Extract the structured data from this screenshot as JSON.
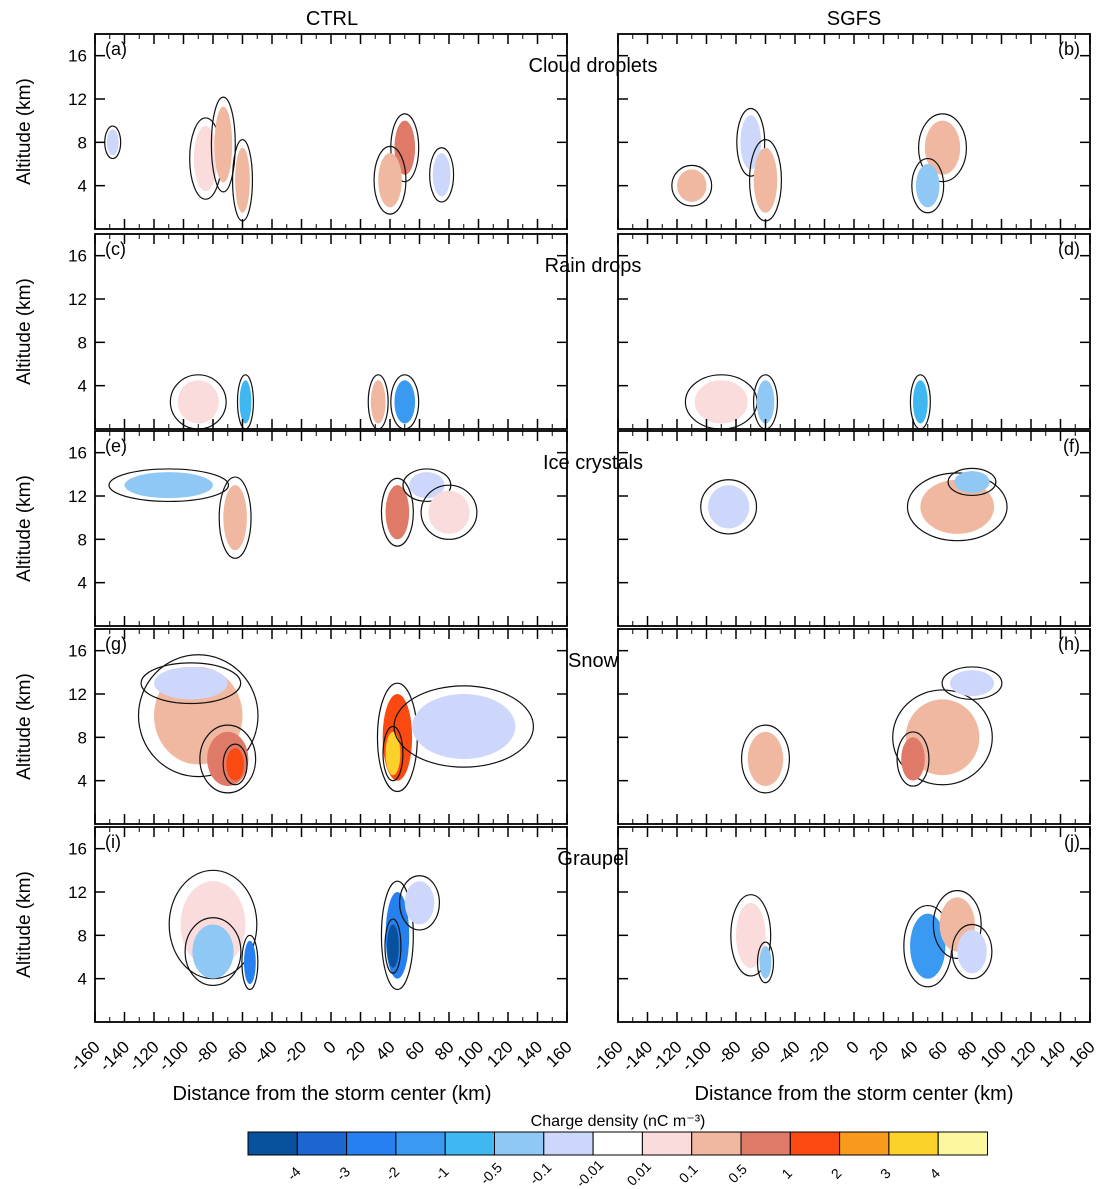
{
  "columns": [
    "CTRL",
    "SGFS"
  ],
  "panel_letters": [
    "(a)",
    "(b)",
    "(c)",
    "(d)",
    "(e)",
    "(f)",
    "(g)",
    "(h)",
    "(i)",
    "(j)"
  ],
  "row_titles": [
    "Cloud droplets",
    "Rain drops",
    "Ice crystals",
    "Snow",
    "Graupel"
  ],
  "ylabel": "Altitude (km)",
  "xlabel": "Distance from the storm center (km)",
  "colorbar": {
    "title": "Charge density (nC m⁻³)",
    "tick_labels": [
      "-4",
      "-3",
      "-2",
      "-1",
      "-0.5",
      "-0.1",
      "-0.01",
      "0.01",
      "0.1",
      "0.5",
      "1",
      "2",
      "3",
      "4"
    ],
    "colors": [
      "#08519c",
      "#1b66d1",
      "#2680f0",
      "#3a9af2",
      "#3fb8f2",
      "#8fc8f5",
      "#cdd7fb",
      "#ffffff",
      "#fadcdc",
      "#f0b8a0",
      "#e07a68",
      "#fa4a12",
      "#f99a1c",
      "#fbd12a",
      "#fcf8a0"
    ]
  },
  "chart_data": {
    "type": "heatmap",
    "x_ticks": [
      -160,
      -140,
      -120,
      -100,
      -80,
      -60,
      -40,
      -20,
      0,
      20,
      40,
      60,
      80,
      100,
      120,
      140,
      160
    ],
    "y_ticks": [
      4,
      8,
      12,
      16
    ],
    "xlim": [
      -160,
      160
    ],
    "ylim": [
      0,
      18
    ],
    "panels": [
      {
        "id": "a",
        "blobs": [
          {
            "x": -148,
            "y": 8,
            "rx": 4,
            "ry": 1.2,
            "v": -0.05
          },
          {
            "x": -85,
            "y": 6.5,
            "rx": 8,
            "ry": 3.0,
            "v": 0.05
          },
          {
            "x": -73,
            "y": 7.8,
            "rx": 6,
            "ry": 3.5,
            "v": 0.3
          },
          {
            "x": -60,
            "y": 4.5,
            "rx": 5,
            "ry": 3.0,
            "v": 0.2
          },
          {
            "x": 50,
            "y": 7.5,
            "rx": 7,
            "ry": 2.5,
            "v": 0.8
          },
          {
            "x": 40,
            "y": 4.5,
            "rx": 8,
            "ry": 2.5,
            "v": 0.3
          },
          {
            "x": 75,
            "y": 5.0,
            "rx": 6,
            "ry": 2.0,
            "v": -0.05
          }
        ]
      },
      {
        "id": "b",
        "blobs": [
          {
            "x": -70,
            "y": 8,
            "rx": 7,
            "ry": 2.5,
            "v": -0.05
          },
          {
            "x": -60,
            "y": 4.5,
            "rx": 8,
            "ry": 3.0,
            "v": 0.2
          },
          {
            "x": -110,
            "y": 4,
            "rx": 10,
            "ry": 1.5,
            "v": 0.1
          },
          {
            "x": 60,
            "y": 7.5,
            "rx": 12,
            "ry": 2.5,
            "v": 0.1
          },
          {
            "x": 50,
            "y": 4,
            "rx": 8,
            "ry": 2.0,
            "v": -0.2
          }
        ]
      },
      {
        "id": "c",
        "blobs": [
          {
            "x": -90,
            "y": 2.5,
            "rx": 14,
            "ry": 2.0,
            "v": 0.05
          },
          {
            "x": -58,
            "y": 2.5,
            "rx": 4,
            "ry": 2.0,
            "v": -0.6
          },
          {
            "x": 50,
            "y": 2.5,
            "rx": 7,
            "ry": 2.0,
            "v": -1.2
          },
          {
            "x": 32,
            "y": 2.5,
            "rx": 5,
            "ry": 2.0,
            "v": 0.1
          }
        ]
      },
      {
        "id": "d",
        "blobs": [
          {
            "x": -90,
            "y": 2.5,
            "rx": 18,
            "ry": 2.0,
            "v": 0.05
          },
          {
            "x": -60,
            "y": 2.5,
            "rx": 6,
            "ry": 2.0,
            "v": -0.3
          },
          {
            "x": 45,
            "y": 2.5,
            "rx": 5,
            "ry": 2.0,
            "v": -0.8
          }
        ]
      },
      {
        "id": "e",
        "blobs": [
          {
            "x": -110,
            "y": 13,
            "rx": 30,
            "ry": 1.2,
            "v": -0.2
          },
          {
            "x": -65,
            "y": 10,
            "rx": 8,
            "ry": 3.0,
            "v": 0.1
          },
          {
            "x": 45,
            "y": 10.5,
            "rx": 8,
            "ry": 2.5,
            "v": 0.9
          },
          {
            "x": 65,
            "y": 13,
            "rx": 12,
            "ry": 1.2,
            "v": -0.1
          },
          {
            "x": 80,
            "y": 10.5,
            "rx": 14,
            "ry": 2.0,
            "v": 0.05
          }
        ]
      },
      {
        "id": "f",
        "blobs": [
          {
            "x": -85,
            "y": 11,
            "rx": 14,
            "ry": 2.0,
            "v": -0.1
          },
          {
            "x": 70,
            "y": 11,
            "rx": 25,
            "ry": 2.5,
            "v": 0.2
          },
          {
            "x": 80,
            "y": 13.3,
            "rx": 12,
            "ry": 1.0,
            "v": -0.2
          }
        ]
      },
      {
        "id": "g",
        "blobs": [
          {
            "x": -90,
            "y": 10,
            "rx": 30,
            "ry": 4.5,
            "v": 0.1
          },
          {
            "x": -95,
            "y": 13,
            "rx": 25,
            "ry": 1.5,
            "v": -0.1
          },
          {
            "x": -70,
            "y": 6,
            "rx": 14,
            "ry": 2.5,
            "v": 0.6
          },
          {
            "x": -65,
            "y": 5.5,
            "rx": 6,
            "ry": 1.5,
            "v": 1.6
          },
          {
            "x": 45,
            "y": 8,
            "rx": 10,
            "ry": 4.0,
            "v": 1.3
          },
          {
            "x": 42,
            "y": 6.5,
            "rx": 5,
            "ry": 2.0,
            "v": 3.5
          },
          {
            "x": 90,
            "y": 9,
            "rx": 35,
            "ry": 3.0,
            "v": -0.05
          }
        ]
      },
      {
        "id": "h",
        "blobs": [
          {
            "x": -60,
            "y": 6,
            "rx": 12,
            "ry": 2.5,
            "v": 0.1
          },
          {
            "x": 60,
            "y": 8,
            "rx": 25,
            "ry": 3.5,
            "v": 0.4
          },
          {
            "x": 40,
            "y": 6,
            "rx": 8,
            "ry": 2.0,
            "v": 0.8
          },
          {
            "x": 80,
            "y": 13,
            "rx": 15,
            "ry": 1.2,
            "v": -0.1
          }
        ]
      },
      {
        "id": "i",
        "blobs": [
          {
            "x": -80,
            "y": 9,
            "rx": 22,
            "ry": 4.0,
            "v": 0.05
          },
          {
            "x": -80,
            "y": 6.5,
            "rx": 14,
            "ry": 2.5,
            "v": -0.3
          },
          {
            "x": -55,
            "y": 5.5,
            "rx": 4,
            "ry": 2.0,
            "v": -2.5
          },
          {
            "x": 45,
            "y": 8,
            "rx": 8,
            "ry": 4.0,
            "v": -2.5
          },
          {
            "x": 42,
            "y": 7,
            "rx": 4,
            "ry": 2.0,
            "v": -4.5
          },
          {
            "x": 60,
            "y": 11,
            "rx": 10,
            "ry": 2.0,
            "v": -0.05
          }
        ]
      },
      {
        "id": "j",
        "blobs": [
          {
            "x": -70,
            "y": 8,
            "rx": 10,
            "ry": 3.0,
            "v": 0.05
          },
          {
            "x": -60,
            "y": 5.5,
            "rx": 4,
            "ry": 1.5,
            "v": -0.3
          },
          {
            "x": 50,
            "y": 7,
            "rx": 12,
            "ry": 3.0,
            "v": -1.2
          },
          {
            "x": 70,
            "y": 9,
            "rx": 12,
            "ry": 2.5,
            "v": 0.1
          },
          {
            "x": 80,
            "y": 6.5,
            "rx": 10,
            "ry": 2.0,
            "v": -0.05
          }
        ]
      }
    ]
  }
}
